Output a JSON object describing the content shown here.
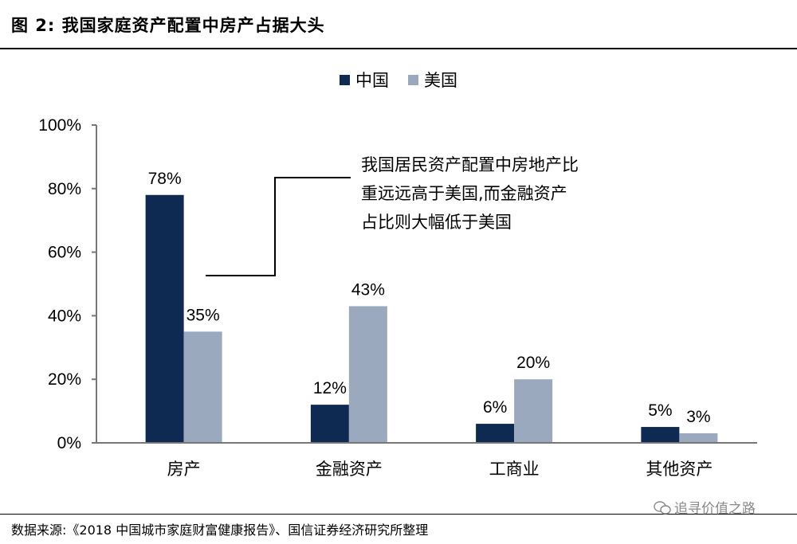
{
  "figure": {
    "title": "图 2: 我国家庭资产配置中房产占据大头",
    "source": "数据来源:《2018 中国城市家庭财富健康报告》、国信证券经济研究所整理",
    "watermark": "追寻价值之路"
  },
  "chart_data": {
    "type": "bar",
    "title": "",
    "xlabel": "",
    "ylabel": "",
    "ylim": [
      0,
      100
    ],
    "yticks": [
      "0%",
      "20%",
      "40%",
      "60%",
      "80%",
      "100%"
    ],
    "categories": [
      "房产",
      "金融资产",
      "工商业",
      "其他资产"
    ],
    "series": [
      {
        "name": "中国",
        "color": "#0f2a52",
        "values": [
          78,
          12,
          6,
          5
        ],
        "labels": [
          "78%",
          "12%",
          "6%",
          "5%"
        ]
      },
      {
        "name": "美国",
        "color": "#9aa9bd",
        "values": [
          35,
          43,
          20,
          3
        ],
        "labels": [
          "35%",
          "43%",
          "20%",
          "3%"
        ]
      }
    ],
    "legend_position": "top-center",
    "grid": false,
    "annotation": [
      "我国居民资产配置中房地产比",
      "重远远高于美国,而金融资产",
      "占比则大幅低于美国"
    ]
  }
}
